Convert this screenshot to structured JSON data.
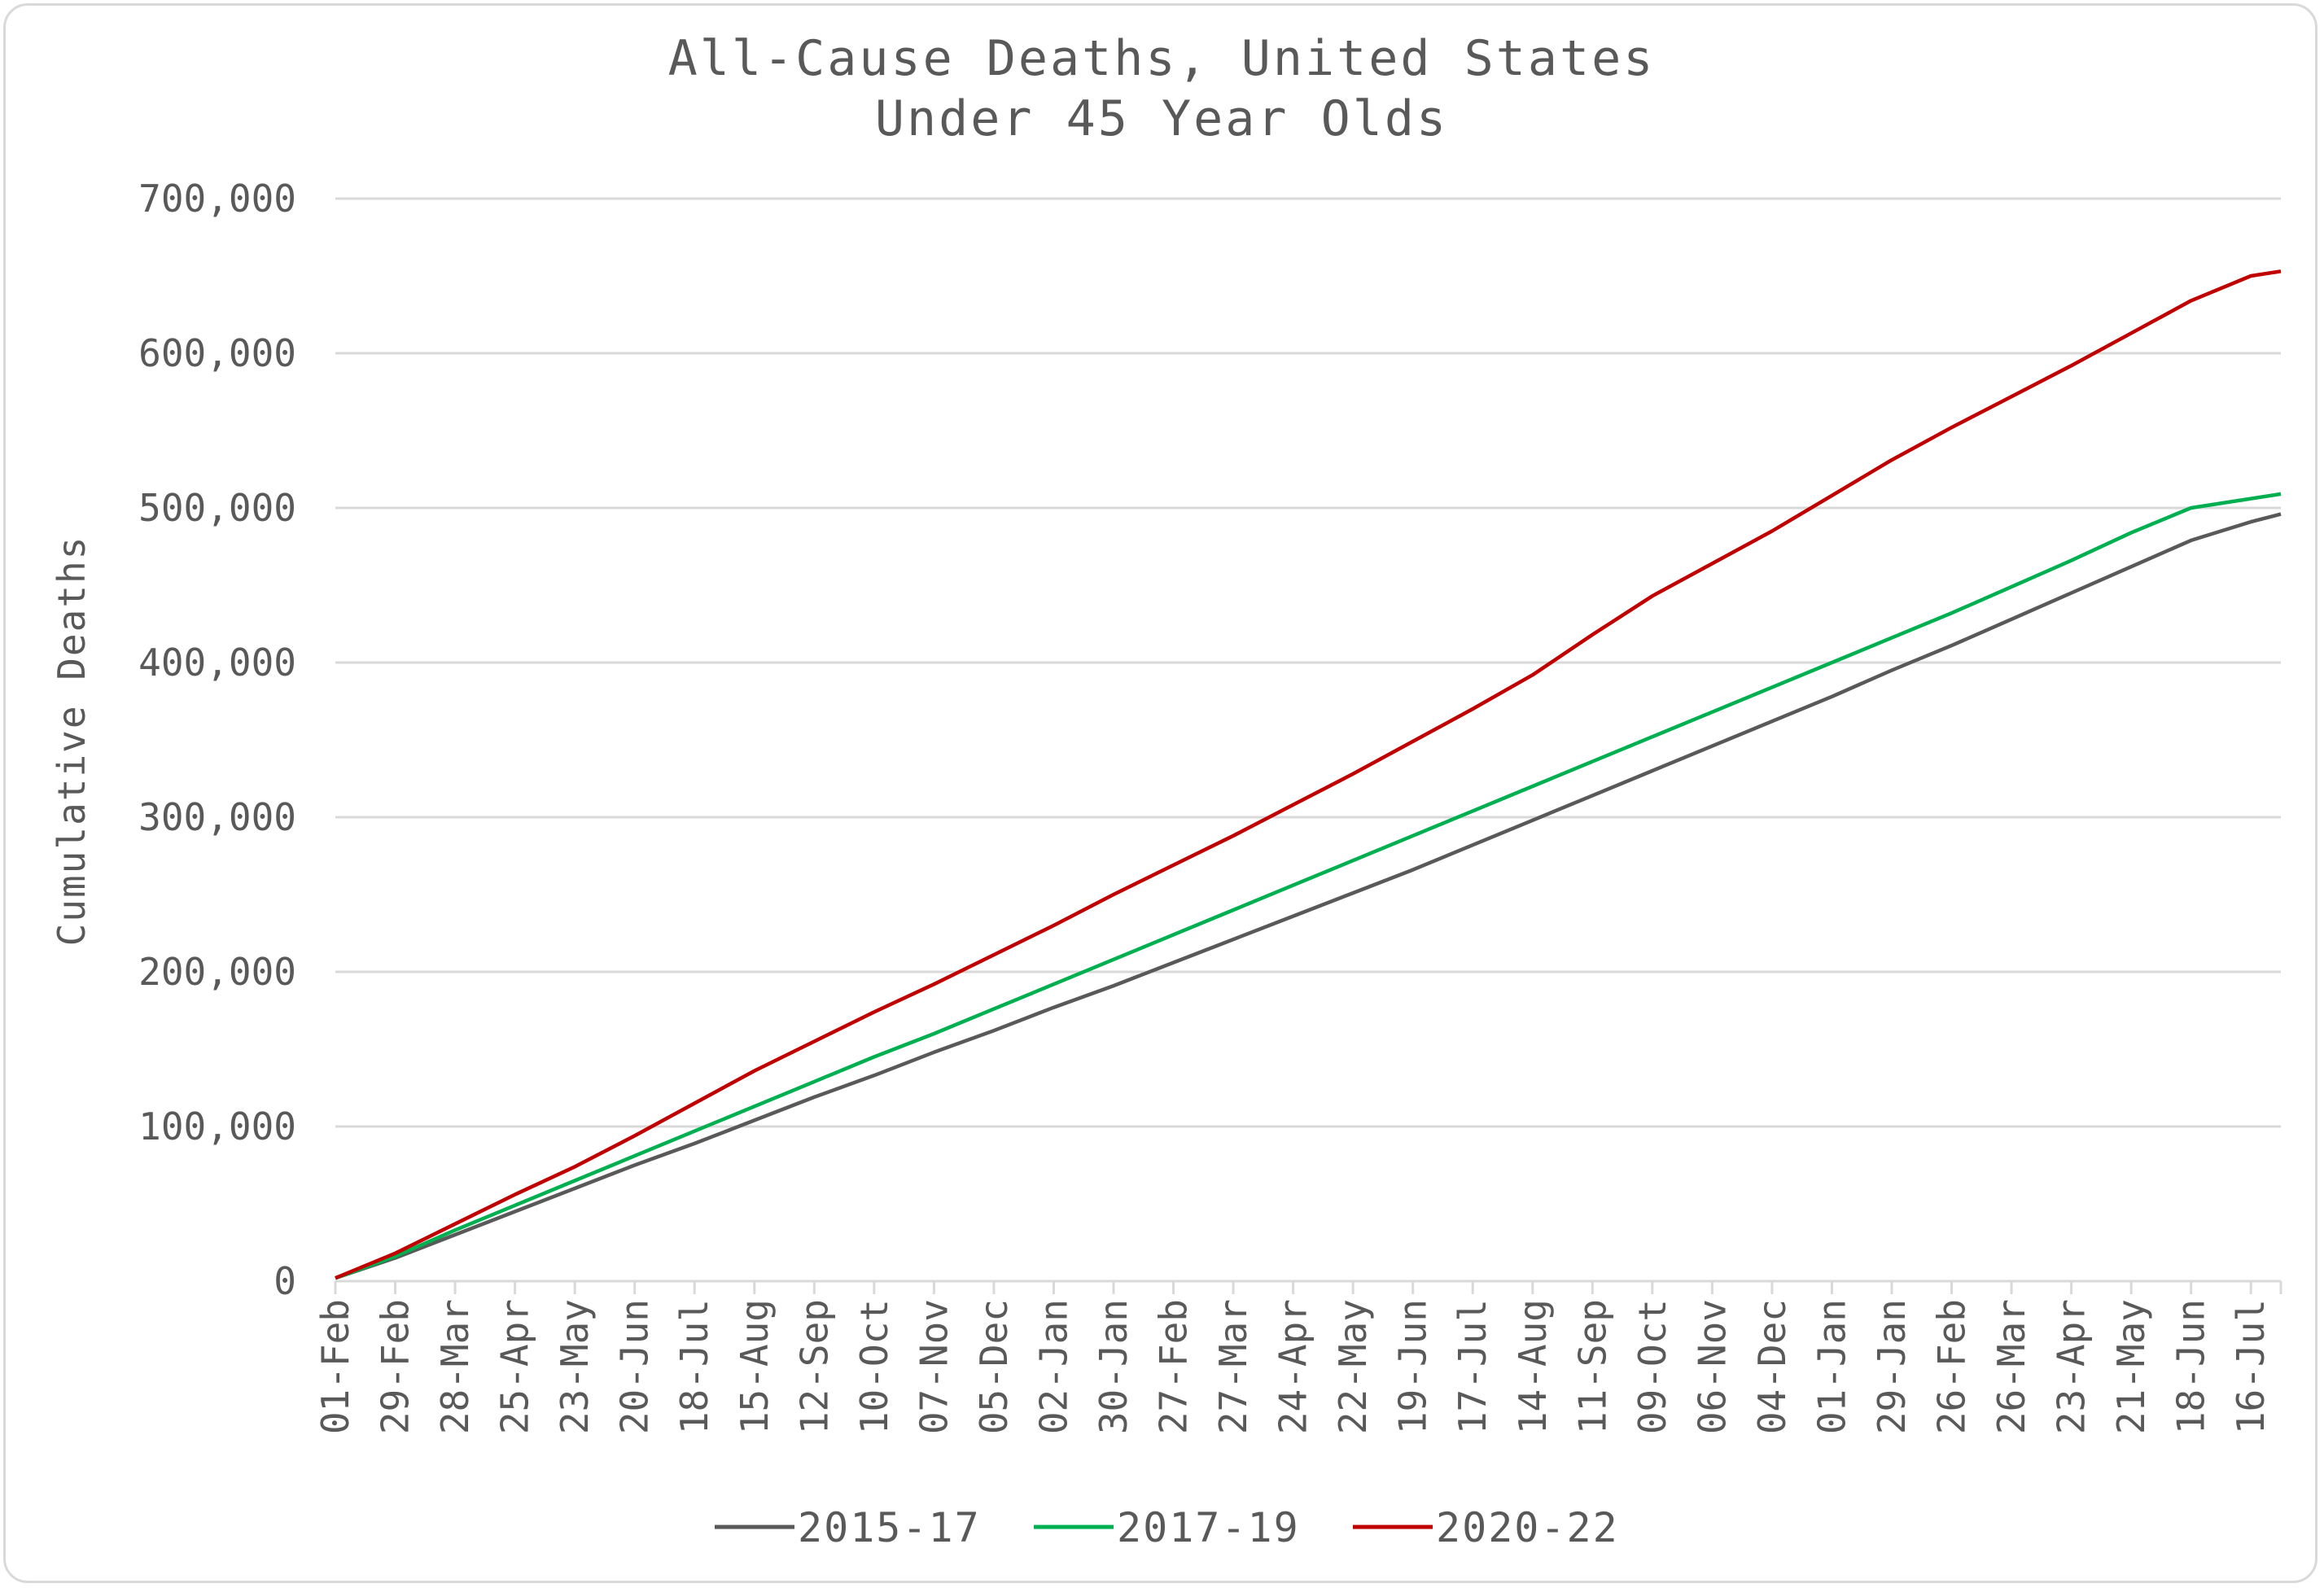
{
  "chart_data": {
    "type": "line",
    "title": "All-Cause Deaths, United States",
    "subtitle": "Under 45 Year Olds",
    "xlabel": "",
    "ylabel": "Cumulative Deaths",
    "ylim": [
      0,
      700000
    ],
    "yticks": [
      "0",
      "100,000",
      "200,000",
      "300,000",
      "400,000",
      "500,000",
      "600,000",
      "700,000"
    ],
    "xticks": [
      "01-Feb",
      "29-Feb",
      "28-Mar",
      "25-Apr",
      "23-May",
      "20-Jun",
      "18-Jul",
      "15-Aug",
      "12-Sep",
      "10-Oct",
      "07-Nov",
      "05-Dec",
      "02-Jan",
      "30-Jan",
      "27-Feb",
      "27-Mar",
      "24-Apr",
      "22-May",
      "19-Jun",
      "17-Jul",
      "14-Aug",
      "11-Sep",
      "09-Oct",
      "06-Nov",
      "04-Dec",
      "01-Jan",
      "29-Jan",
      "26-Feb",
      "26-Mar",
      "23-Apr",
      "21-May",
      "18-Jun",
      "16-Jul"
    ],
    "x_tick_interval_days": 28,
    "x_last_day": 910,
    "grid": "horizontal",
    "legend_position": "bottom",
    "series": [
      {
        "name": "2015-17",
        "color": "#595959",
        "days": [
          0,
          28,
          56,
          84,
          112,
          140,
          168,
          196,
          224,
          252,
          280,
          308,
          336,
          364,
          392,
          420,
          448,
          476,
          504,
          532,
          560,
          588,
          616,
          644,
          672,
          700,
          728,
          756,
          784,
          812,
          840,
          868,
          896,
          910
        ],
        "values": [
          2000,
          15000,
          30000,
          45000,
          60000,
          75000,
          89000,
          104000,
          119000,
          133000,
          148000,
          162000,
          177000,
          191000,
          206000,
          221000,
          236000,
          251000,
          266000,
          282000,
          298000,
          314000,
          330000,
          346000,
          362000,
          378000,
          395000,
          411000,
          428000,
          445000,
          462000,
          479000,
          491000,
          496000
        ]
      },
      {
        "name": "2017-19",
        "color": "#00b050",
        "days": [
          0,
          28,
          56,
          84,
          112,
          140,
          168,
          196,
          224,
          252,
          280,
          308,
          336,
          364,
          392,
          420,
          448,
          476,
          504,
          532,
          560,
          588,
          616,
          644,
          672,
          700,
          728,
          756,
          784,
          812,
          840,
          868,
          896,
          910
        ],
        "values": [
          2000,
          16000,
          33000,
          49000,
          65000,
          81000,
          97000,
          113000,
          129000,
          145000,
          160000,
          176000,
          192000,
          208000,
          224000,
          240000,
          256000,
          272000,
          288000,
          304000,
          320000,
          336000,
          352000,
          368000,
          384000,
          400000,
          416000,
          432000,
          449000,
          466000,
          484000,
          500000,
          506000,
          509000
        ]
      },
      {
        "name": "2020-22",
        "color": "#c00000",
        "days": [
          0,
          28,
          56,
          84,
          112,
          140,
          168,
          196,
          224,
          252,
          280,
          308,
          336,
          364,
          392,
          420,
          448,
          476,
          504,
          532,
          560,
          588,
          616,
          644,
          672,
          700,
          728,
          756,
          784,
          812,
          840,
          868,
          896,
          910
        ],
        "values": [
          2000,
          18000,
          37000,
          56000,
          74000,
          94000,
          115000,
          136000,
          155000,
          174000,
          192000,
          211000,
          230000,
          250000,
          269000,
          288000,
          308000,
          328000,
          349000,
          370000,
          392000,
          418000,
          443000,
          464000,
          485000,
          508000,
          531000,
          552000,
          572000,
          592000,
          613000,
          634000,
          650000,
          653000
        ]
      }
    ]
  }
}
